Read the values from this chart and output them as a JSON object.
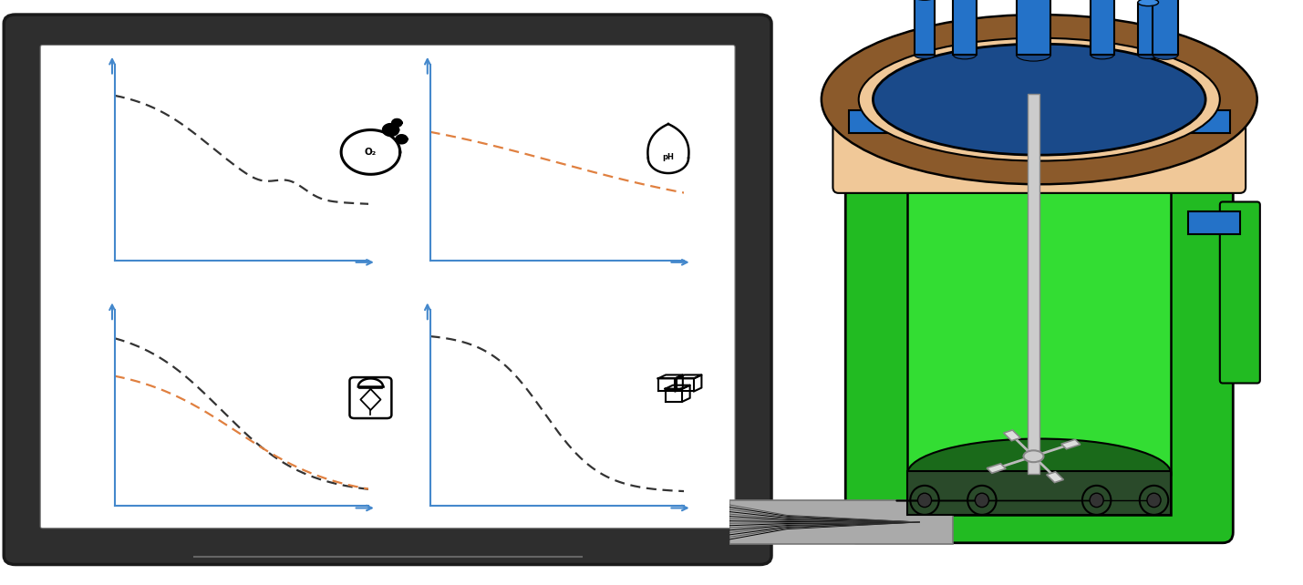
{
  "frame_outer_color": "#2e2e2e",
  "frame_inner_color": "#1a1a1a",
  "screen_color": "#ffffff",
  "axis_color": "#4488cc",
  "dark_line_color": "#333333",
  "orange_line_color": "#e08040",
  "green_body": "#22bb22",
  "green_dark": "#1a8a1a",
  "green_bright": "#33dd33",
  "green_inner_wall": "#2ecc2e",
  "blue_lid": "#1a4a8a",
  "blue_tube": "#2472c8",
  "brown_ring": "#8B5A2B",
  "peach_color": "#f0c898",
  "gray_shaft": "#bbbbbb",
  "cable_gray": "#aaaaaa",
  "sensor_dark": "#2a4a2a"
}
